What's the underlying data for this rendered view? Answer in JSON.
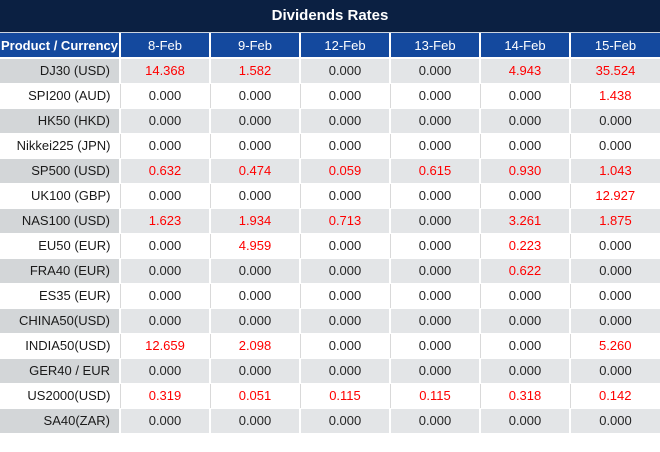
{
  "title": "Dividends Rates",
  "table": {
    "product_header": "Product / Currency",
    "date_headers": [
      "8-Feb",
      "9-Feb",
      "12-Feb",
      "13-Feb",
      "14-Feb",
      "15-Feb"
    ],
    "rows": [
      {
        "product": "DJ30 (USD)",
        "values": [
          "14.368",
          "1.582",
          "0.000",
          "0.000",
          "4.943",
          "35.524"
        ],
        "red": [
          1,
          1,
          0,
          0,
          1,
          1
        ]
      },
      {
        "product": "SPI200 (AUD)",
        "values": [
          "0.000",
          "0.000",
          "0.000",
          "0.000",
          "0.000",
          "1.438"
        ],
        "red": [
          0,
          0,
          0,
          0,
          0,
          1
        ]
      },
      {
        "product": "HK50 (HKD)",
        "values": [
          "0.000",
          "0.000",
          "0.000",
          "0.000",
          "0.000",
          "0.000"
        ],
        "red": [
          0,
          0,
          0,
          0,
          0,
          0
        ]
      },
      {
        "product": "Nikkei225 (JPN)",
        "values": [
          "0.000",
          "0.000",
          "0.000",
          "0.000",
          "0.000",
          "0.000"
        ],
        "red": [
          0,
          0,
          0,
          0,
          0,
          0
        ]
      },
      {
        "product": "SP500 (USD)",
        "values": [
          "0.632",
          "0.474",
          "0.059",
          "0.615",
          "0.930",
          "1.043"
        ],
        "red": [
          1,
          1,
          1,
          1,
          1,
          1
        ]
      },
      {
        "product": "UK100 (GBP)",
        "values": [
          "0.000",
          "0.000",
          "0.000",
          "0.000",
          "0.000",
          "12.927"
        ],
        "red": [
          0,
          0,
          0,
          0,
          0,
          1
        ]
      },
      {
        "product": "NAS100 (USD)",
        "values": [
          "1.623",
          "1.934",
          "0.713",
          "0.000",
          "3.261",
          "1.875"
        ],
        "red": [
          1,
          1,
          1,
          0,
          1,
          1
        ]
      },
      {
        "product": "EU50 (EUR)",
        "values": [
          "0.000",
          "4.959",
          "0.000",
          "0.000",
          "0.223",
          "0.000"
        ],
        "red": [
          0,
          1,
          0,
          0,
          1,
          0
        ]
      },
      {
        "product": "FRA40 (EUR)",
        "values": [
          "0.000",
          "0.000",
          "0.000",
          "0.000",
          "0.622",
          "0.000"
        ],
        "red": [
          0,
          0,
          0,
          0,
          1,
          0
        ]
      },
      {
        "product": "ES35 (EUR)",
        "values": [
          "0.000",
          "0.000",
          "0.000",
          "0.000",
          "0.000",
          "0.000"
        ],
        "red": [
          0,
          0,
          0,
          0,
          0,
          0
        ]
      },
      {
        "product": "CHINA50(USD)",
        "values": [
          "0.000",
          "0.000",
          "0.000",
          "0.000",
          "0.000",
          "0.000"
        ],
        "red": [
          0,
          0,
          0,
          0,
          0,
          0
        ]
      },
      {
        "product": "INDIA50(USD)",
        "values": [
          "12.659",
          "2.098",
          "0.000",
          "0.000",
          "0.000",
          "5.260"
        ],
        "red": [
          1,
          1,
          0,
          0,
          0,
          1
        ]
      },
      {
        "product": "GER40 / EUR",
        "values": [
          "0.000",
          "0.000",
          "0.000",
          "0.000",
          "0.000",
          "0.000"
        ],
        "red": [
          0,
          0,
          0,
          0,
          0,
          0
        ]
      },
      {
        "product": "US2000(USD)",
        "values": [
          "0.319",
          "0.051",
          "0.115",
          "0.115",
          "0.318",
          "0.142"
        ],
        "red": [
          1,
          1,
          1,
          1,
          1,
          1
        ]
      },
      {
        "product": "SA40(ZAR)",
        "values": [
          "0.000",
          "0.000",
          "0.000",
          "0.000",
          "0.000",
          "0.000"
        ],
        "red": [
          0,
          0,
          0,
          0,
          0,
          0
        ]
      }
    ]
  },
  "colors": {
    "title_bg": "#0b2042",
    "header_bg": "#14499e",
    "header_text": "#ffffff",
    "alt_row_product_bg": "#d3d6d8",
    "alt_row_data_bg": "#e3e5e7",
    "plain_row_bg": "#ffffff",
    "value_highlight": "#ff0000",
    "value_default": "#262626"
  }
}
